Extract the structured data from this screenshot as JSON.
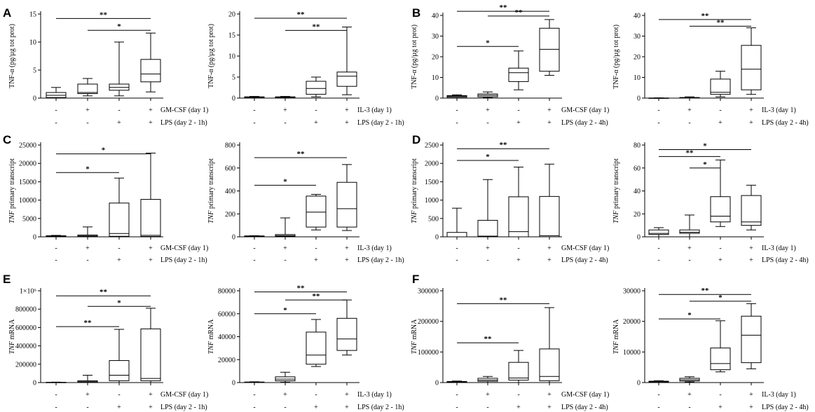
{
  "figure": {
    "x_positions": [
      "1",
      "2",
      "3",
      "4"
    ]
  },
  "chart_data": [
    {
      "type": "box",
      "panel": "A",
      "ylabel": "TNF-α (pg/µg tot prot)",
      "ylim": [
        0,
        15
      ],
      "yticks": [
        "0",
        "5",
        "10",
        "15"
      ],
      "ytick_values": [
        0,
        5,
        10,
        15
      ],
      "treatment_label": "GM-CSF (day 1)",
      "stimulus_label": "LPS (day 2 - 1h)",
      "treatment_row": [
        "-",
        "+",
        "-",
        "+"
      ],
      "stimulus_row": [
        "-",
        "-",
        "+",
        "+"
      ],
      "boxes": [
        {
          "min": 0.0,
          "q1": 0.1,
          "median": 0.5,
          "q3": 1.0,
          "max": 1.9
        },
        {
          "min": 0.4,
          "q1": 0.8,
          "median": 1.0,
          "q3": 2.5,
          "max": 3.5
        },
        {
          "min": 0.4,
          "q1": 1.4,
          "median": 1.9,
          "q3": 2.5,
          "max": 10.0
        },
        {
          "min": 1.1,
          "q1": 2.9,
          "median": 4.3,
          "q3": 6.9,
          "max": 11.6
        }
      ],
      "comparisons": [
        {
          "from": 1,
          "to": 4,
          "label": "**",
          "y": 14.2
        },
        {
          "from": 2,
          "to": 4,
          "label": "*",
          "y": 12.1
        }
      ]
    },
    {
      "type": "box",
      "panel": "",
      "ylabel": "TNF-α (pg/µg tot prot)",
      "ylim": [
        0,
        20
      ],
      "yticks": [
        "0",
        "5",
        "10",
        "15",
        "20"
      ],
      "ytick_values": [
        0,
        5,
        10,
        15,
        20
      ],
      "treatment_label": "IL-3 (day 1)",
      "stimulus_label": "LPS (day 2 - 1h)",
      "treatment_row": [
        "-",
        "+",
        "-",
        "+"
      ],
      "stimulus_row": [
        "-",
        "-",
        "+",
        "+"
      ],
      "boxes": [
        {
          "min": 0.0,
          "q1": 0.1,
          "median": 0.2,
          "q3": 0.3,
          "max": 0.4
        },
        {
          "min": 0.0,
          "q1": 0.1,
          "median": 0.2,
          "q3": 0.3,
          "max": 0.4
        },
        {
          "min": 0.3,
          "q1": 0.9,
          "median": 2.3,
          "q3": 4.0,
          "max": 5.0
        },
        {
          "min": 0.8,
          "q1": 2.8,
          "median": 5.2,
          "q3": 6.2,
          "max": 16.9
        }
      ],
      "comparisons": [
        {
          "from": 1,
          "to": 4,
          "label": "**",
          "y": 19.0
        },
        {
          "from": 2,
          "to": 4,
          "label": "**",
          "y": 16.1
        }
      ]
    },
    {
      "type": "box",
      "panel": "B",
      "ylabel": "TNF-α (pg/µg tot prot)",
      "ylim": [
        0,
        40
      ],
      "yticks": [
        "0",
        "10",
        "20",
        "30",
        "40"
      ],
      "ytick_values": [
        0,
        10,
        20,
        30,
        40
      ],
      "treatment_label": "GM-CSF (day 1)",
      "stimulus_label": "LPS (day 2 - 4h)",
      "treatment_row": [
        "-",
        "+",
        "-",
        "+"
      ],
      "stimulus_row": [
        "-",
        "-",
        "+",
        "+"
      ],
      "boxes": [
        {
          "min": 0.0,
          "q1": 0.4,
          "median": 0.9,
          "q3": 1.2,
          "max": 1.6
        },
        {
          "min": 0.2,
          "q1": 0.6,
          "median": 1.3,
          "q3": 2.0,
          "max": 3.0
        },
        {
          "min": 4.0,
          "q1": 8.0,
          "median": 12.3,
          "q3": 14.5,
          "max": 22.8
        },
        {
          "min": 11.0,
          "q1": 13.0,
          "median": 23.6,
          "q3": 33.8,
          "max": 38.0
        }
      ],
      "comparisons": [
        {
          "from": 1,
          "to": 4,
          "label": "**",
          "y": 42.0
        },
        {
          "from": 2,
          "to": 4,
          "label": "**",
          "y": 39.7
        },
        {
          "from": 1,
          "to": 3,
          "label": "*",
          "y": 25.0
        }
      ]
    },
    {
      "type": "box",
      "panel": "",
      "ylabel": "TNF-α (pg/µg tot prot)",
      "ylim": [
        0,
        40
      ],
      "yticks": [
        "0",
        "10",
        "20",
        "30",
        "40"
      ],
      "ytick_values": [
        0,
        10,
        20,
        30,
        40
      ],
      "treatment_label": "IL-3 (day 1)",
      "stimulus_label": "LPS (day 2 - 4h)",
      "treatment_row": [
        "-",
        "+",
        "-",
        "+"
      ],
      "stimulus_row": [
        "-",
        "-",
        "+",
        "+"
      ],
      "boxes": [
        {
          "min": 0.0,
          "q1": 0.0,
          "median": 0.0,
          "q3": 0.05,
          "max": 0.1
        },
        {
          "min": 0.0,
          "q1": 0.05,
          "median": 0.1,
          "q3": 0.3,
          "max": 0.6
        },
        {
          "min": 0.6,
          "q1": 1.8,
          "median": 2.8,
          "q3": 9.2,
          "max": 13.0
        },
        {
          "min": 1.8,
          "q1": 4.0,
          "median": 14.0,
          "q3": 25.5,
          "max": 34.0
        }
      ],
      "comparisons": [
        {
          "from": 1,
          "to": 4,
          "label": "**",
          "y": 38.0
        },
        {
          "from": 2,
          "to": 4,
          "label": "**",
          "y": 34.8
        }
      ]
    },
    {
      "type": "box",
      "panel": "C",
      "ylabel": "TNF primary transcript",
      "ylabel_italic_word": "TNF",
      "ylim": [
        0,
        25000
      ],
      "yticks": [
        "0",
        "5000",
        "10000",
        "15000",
        "20000",
        "25000"
      ],
      "ytick_values": [
        0,
        5000,
        10000,
        15000,
        20000,
        25000
      ],
      "treatment_label": "GM-CSF (day 1)",
      "stimulus_label": "LPS (day 2 - 1h)",
      "treatment_row": [
        "-",
        "+",
        "-",
        "+"
      ],
      "stimulus_row": [
        "-",
        "-",
        "+",
        "+"
      ],
      "boxes": [
        {
          "min": 0,
          "q1": 50,
          "median": 150,
          "q3": 300,
          "max": 400
        },
        {
          "min": 0,
          "q1": 100,
          "median": 250,
          "q3": 500,
          "max": 2700
        },
        {
          "min": 0,
          "q1": 150,
          "median": 900,
          "q3": 9200,
          "max": 16000
        },
        {
          "min": 0,
          "q1": 100,
          "median": 400,
          "q3": 10200,
          "max": 22800
        }
      ],
      "comparisons": [
        {
          "from": 1,
          "to": 4,
          "label": "*",
          "y": 22600
        },
        {
          "from": 1,
          "to": 3,
          "label": "*",
          "y": 17500
        }
      ]
    },
    {
      "type": "box",
      "panel": "",
      "ylabel": "TNF primary transcript",
      "ylabel_italic_word": "TNF",
      "ylim": [
        0,
        800
      ],
      "yticks": [
        "0",
        "200",
        "400",
        "600",
        "800"
      ],
      "ytick_values": [
        0,
        200,
        400,
        600,
        800
      ],
      "treatment_label": "IL-3 (day 1)",
      "stimulus_label": "LPS (day 2 - 1h)",
      "treatment_row": [
        "-",
        "+",
        "-",
        "+"
      ],
      "stimulus_row": [
        "-",
        "-",
        "+",
        "+"
      ],
      "boxes": [
        {
          "min": 0,
          "q1": 2,
          "median": 5,
          "q3": 8,
          "max": 10
        },
        {
          "min": 0,
          "q1": 5,
          "median": 10,
          "q3": 20,
          "max": 165
        },
        {
          "min": 60,
          "q1": 85,
          "median": 215,
          "q3": 355,
          "max": 370
        },
        {
          "min": 55,
          "q1": 85,
          "median": 245,
          "q3": 475,
          "max": 630
        }
      ],
      "comparisons": [
        {
          "from": 1,
          "to": 4,
          "label": "**",
          "y": 690
        },
        {
          "from": 1,
          "to": 3,
          "label": "*",
          "y": 450
        }
      ]
    },
    {
      "type": "box",
      "panel": "D",
      "ylabel": "TNF primary transcript",
      "ylabel_italic_word": "TNF",
      "ylim": [
        0,
        2500
      ],
      "yticks": [
        "0",
        "500",
        "1000",
        "1500",
        "2000",
        "2500"
      ],
      "ytick_values": [
        0,
        500,
        1000,
        1500,
        2000,
        2500
      ],
      "treatment_label": "GM-CSF (day 1)",
      "stimulus_label": "LPS (day 2 - 4h)",
      "treatment_row": [
        "-",
        "+",
        "-",
        "+"
      ],
      "stimulus_row": [
        "-",
        "-",
        "+",
        "+"
      ],
      "boxes": [
        {
          "min": 0,
          "q1": 0,
          "median": 0,
          "q3": 120,
          "max": 780
        },
        {
          "min": 0,
          "q1": 0,
          "median": 20,
          "q3": 450,
          "max": 1560
        },
        {
          "min": 0,
          "q1": 0,
          "median": 140,
          "q3": 1090,
          "max": 1900
        },
        {
          "min": 0,
          "q1": 0,
          "median": 30,
          "q3": 1100,
          "max": 1980
        }
      ],
      "comparisons": [
        {
          "from": 1,
          "to": 4,
          "label": "**",
          "y": 2400
        },
        {
          "from": 1,
          "to": 3,
          "label": "*",
          "y": 2080
        }
      ]
    },
    {
      "type": "box",
      "panel": "",
      "ylabel": "TNF primary transcript",
      "ylabel_italic_word": "TNF",
      "ylim": [
        0,
        80
      ],
      "yticks": [
        "0",
        "20",
        "40",
        "60",
        "80"
      ],
      "ytick_values": [
        0,
        20,
        40,
        60,
        80
      ],
      "treatment_label": "IL-3 (day 1)",
      "stimulus_label": "LPS (day 2 - 4h)",
      "treatment_row": [
        "-",
        "+",
        "-",
        "+"
      ],
      "stimulus_row": [
        "-",
        "-",
        "+",
        "+"
      ],
      "boxes": [
        {
          "min": 0,
          "q1": 2,
          "median": 3,
          "q3": 6,
          "max": 8
        },
        {
          "min": 0,
          "q1": 3,
          "median": 4,
          "q3": 6,
          "max": 19
        },
        {
          "min": 9,
          "q1": 13,
          "median": 18,
          "q3": 35,
          "max": 67
        },
        {
          "min": 6,
          "q1": 10,
          "median": 13,
          "q3": 36,
          "max": 45
        }
      ],
      "comparisons": [
        {
          "from": 1,
          "to": 4,
          "label": "*",
          "y": 76
        },
        {
          "from": 1,
          "to": 3,
          "label": "**",
          "y": 70
        },
        {
          "from": 2,
          "to": 3,
          "label": "*",
          "y": 60
        }
      ]
    },
    {
      "type": "box",
      "panel": "E",
      "ylabel": "TNF mRNA",
      "ylabel_italic_word": "TNF",
      "ylim": [
        0,
        1000000
      ],
      "yticks": [
        "0",
        "200000",
        "400000",
        "600000",
        "800000",
        "1×10⁶"
      ],
      "ytick_values": [
        0,
        200000,
        400000,
        600000,
        800000,
        1000000
      ],
      "treatment_label": "GM-CSF (day 1)",
      "stimulus_label": "LPS (day 2 - 1h)",
      "treatment_row": [
        "-",
        "+",
        "-",
        "+"
      ],
      "stimulus_row": [
        "-",
        "-",
        "+",
        "+"
      ],
      "boxes": [
        {
          "min": 0,
          "q1": 500,
          "median": 1500,
          "q3": 3000,
          "max": 5000
        },
        {
          "min": 0,
          "q1": 3000,
          "median": 10000,
          "q3": 20000,
          "max": 80000
        },
        {
          "min": 0,
          "q1": 20000,
          "median": 80000,
          "q3": 240000,
          "max": 580000
        },
        {
          "min": 0,
          "q1": 20000,
          "median": 45000,
          "q3": 585000,
          "max": 810000
        }
      ],
      "comparisons": [
        {
          "from": 1,
          "to": 4,
          "label": "**",
          "y": 945000
        },
        {
          "from": 2,
          "to": 4,
          "label": "*",
          "y": 830000
        },
        {
          "from": 1,
          "to": 3,
          "label": "**",
          "y": 610000
        }
      ]
    },
    {
      "type": "box",
      "panel": "",
      "ylabel": "TNF mRNA",
      "ylabel_italic_word": "TNF",
      "ylim": [
        0,
        80000
      ],
      "yticks": [
        "0",
        "20000",
        "40000",
        "60000",
        "80000"
      ],
      "ytick_values": [
        0,
        20000,
        40000,
        60000,
        80000
      ],
      "treatment_label": "IL-3 (day 1)",
      "stimulus_label": "LPS (day 2 - 1h)",
      "treatment_row": [
        "-",
        "+",
        "-",
        "+"
      ],
      "stimulus_row": [
        "-",
        "-",
        "+",
        "+"
      ],
      "boxes": [
        {
          "min": 0,
          "q1": 100,
          "median": 300,
          "q3": 500,
          "max": 700
        },
        {
          "min": 300,
          "q1": 1500,
          "median": 3000,
          "q3": 5000,
          "max": 9000
        },
        {
          "min": 14000,
          "q1": 16000,
          "median": 24000,
          "q3": 44000,
          "max": 55000
        },
        {
          "min": 24000,
          "q1": 28000,
          "median": 38000,
          "q3": 56000,
          "max": 72000
        }
      ],
      "comparisons": [
        {
          "from": 1,
          "to": 4,
          "label": "**",
          "y": 79000
        },
        {
          "from": 2,
          "to": 4,
          "label": "**",
          "y": 72000
        },
        {
          "from": 1,
          "to": 3,
          "label": "*",
          "y": 60000
        }
      ]
    },
    {
      "type": "box",
      "panel": "F",
      "ylabel": "TNF mRNA",
      "ylabel_italic_word": "TNF",
      "ylim": [
        0,
        300000
      ],
      "yticks": [
        "0",
        "100000",
        "200000",
        "300000"
      ],
      "ytick_values": [
        0,
        100000,
        200000,
        300000
      ],
      "treatment_label": "GM-CSF (day 1)",
      "stimulus_label": "LPS (day 2 - 4h)",
      "treatment_row": [
        "-",
        "+",
        "-",
        "+"
      ],
      "stimulus_row": [
        "-",
        "-",
        "+",
        "+"
      ],
      "boxes": [
        {
          "min": 0,
          "q1": 1000,
          "median": 2000,
          "q3": 3500,
          "max": 5000
        },
        {
          "min": 0,
          "q1": 4000,
          "median": 8000,
          "q3": 14000,
          "max": 20000
        },
        {
          "min": 0,
          "q1": 8000,
          "median": 15000,
          "q3": 66000,
          "max": 105000
        },
        {
          "min": 0,
          "q1": 6000,
          "median": 20000,
          "q3": 110000,
          "max": 245000
        }
      ],
      "comparisons": [
        {
          "from": 1,
          "to": 4,
          "label": "**",
          "y": 258000
        },
        {
          "from": 1,
          "to": 3,
          "label": "**",
          "y": 130000
        }
      ]
    },
    {
      "type": "box",
      "panel": "",
      "ylabel": "TNF mRNA",
      "ylabel_italic_word": "TNF",
      "ylim": [
        0,
        30000
      ],
      "yticks": [
        "0",
        "10000",
        "20000",
        "30000"
      ],
      "ytick_values": [
        0,
        10000,
        20000,
        30000
      ],
      "treatment_label": "IL-3 (day 1)",
      "stimulus_label": "LPS (day 2 - 4h)",
      "treatment_row": [
        "-",
        "+",
        "-",
        "+"
      ],
      "stimulus_row": [
        "-",
        "-",
        "+",
        "+"
      ],
      "boxes": [
        {
          "min": 0,
          "q1": 100,
          "median": 250,
          "q3": 450,
          "max": 600
        },
        {
          "min": 200,
          "q1": 500,
          "median": 900,
          "q3": 1400,
          "max": 1900
        },
        {
          "min": 3500,
          "q1": 4200,
          "median": 6200,
          "q3": 11300,
          "max": 20200
        },
        {
          "min": 4500,
          "q1": 6500,
          "median": 15500,
          "q3": 21700,
          "max": 25800
        }
      ],
      "comparisons": [
        {
          "from": 1,
          "to": 4,
          "label": "**",
          "y": 28800
        },
        {
          "from": 2,
          "to": 4,
          "label": "*",
          "y": 26600
        },
        {
          "from": 1,
          "to": 3,
          "label": "*",
          "y": 20800
        }
      ]
    }
  ]
}
